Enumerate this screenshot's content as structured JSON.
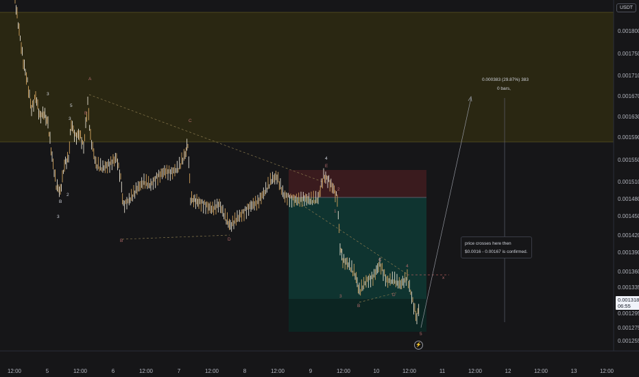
{
  "currency_badge": "USDT",
  "price_axis_labels": [
    "0.001800",
    "0.001750",
    "0.001710",
    "0.001670",
    "0.001630",
    "0.001590",
    "0.001550",
    "0.001510",
    "0.001480",
    "0.001450",
    "0.001420",
    "0.001390",
    "0.001360",
    "0.001335",
    "0.001295",
    "0.001275",
    "0.001255"
  ],
  "time_axis_labels": [
    "12:00",
    "5",
    "12:00",
    "6",
    "12:00",
    "7",
    "12:00",
    "8",
    "12:00",
    "9",
    "12:00",
    "10",
    "12:00",
    "11",
    "12:00",
    "12",
    "12:00",
    "13",
    "12:00"
  ],
  "current_price": {
    "value": "0.001318",
    "countdown": "06:55"
  },
  "measure": {
    "line1": "0.000383 (29.87%) 383",
    "line2": "0 bars,"
  },
  "callout": {
    "line1": "price crosses here then",
    "line2": "$0.0016 - 0.00167 is confirmed."
  },
  "wave_labels": {
    "A_top": "A",
    "C_top": "C",
    "B_left": "B",
    "D_left": "D",
    "E_mid": "E",
    "four_mid": "4",
    "three_a": "3",
    "five_a": "5",
    "three_b": "3",
    "two_a": "2",
    "B_lower": "B",
    "two_lower": "2",
    "three_lower": "3",
    "x_mid": "x",
    "two_mid": "2",
    "one_mid": "1",
    "three_mid": "3",
    "b_small": "B",
    "c_small": "C",
    "d_small": "D",
    "four_small": "4",
    "five_small": "5",
    "x_right": "x"
  },
  "colors": {
    "background": "#161618",
    "upper_zone": "#2a2712",
    "stop_zone": "#3a1b1e",
    "target_zone": "#0f3430",
    "candles": "#d3a45e"
  }
}
